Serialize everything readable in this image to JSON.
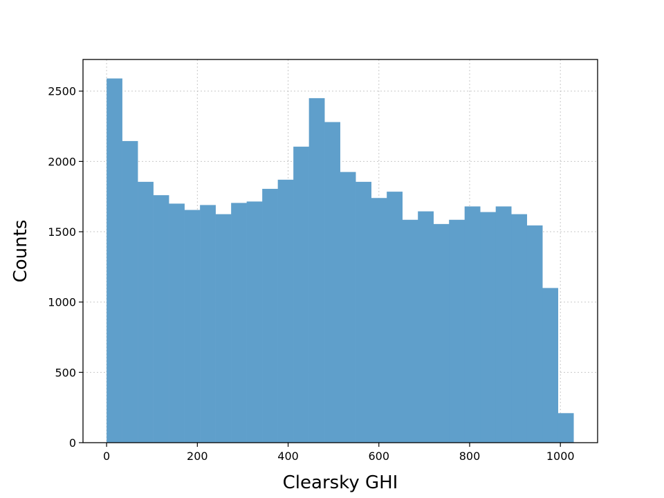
{
  "chart_data": {
    "type": "bar",
    "title": "",
    "xlabel": "Clearsky GHI",
    "ylabel": "Counts",
    "xlim": [
      -52,
      1082
    ],
    "ylim": [
      0,
      2725
    ],
    "xticks": [
      0,
      200,
      400,
      600,
      800,
      1000
    ],
    "yticks": [
      0,
      500,
      1000,
      1500,
      2000,
      2500
    ],
    "grid": true,
    "bar_color": "#5f9fcb",
    "bin_edges": [
      0,
      34.3,
      68.6,
      102.9,
      137.2,
      171.5,
      205.8,
      240.1,
      274.4,
      308.7,
      343,
      377.3,
      411.6,
      445.9,
      480.2,
      514.5,
      548.8,
      583.1,
      617.4,
      651.7,
      686,
      720.3,
      754.6,
      788.9,
      823.2,
      857.5,
      891.8,
      926.1,
      960.4,
      994.7,
      1029
    ],
    "values": [
      2590,
      2145,
      1855,
      1760,
      1700,
      1655,
      1690,
      1625,
      1705,
      1715,
      1805,
      1870,
      2105,
      2450,
      2280,
      1925,
      1855,
      1740,
      1785,
      1585,
      1645,
      1555,
      1585,
      1680,
      1640,
      1680,
      1625,
      1545,
      1100,
      210
    ]
  }
}
